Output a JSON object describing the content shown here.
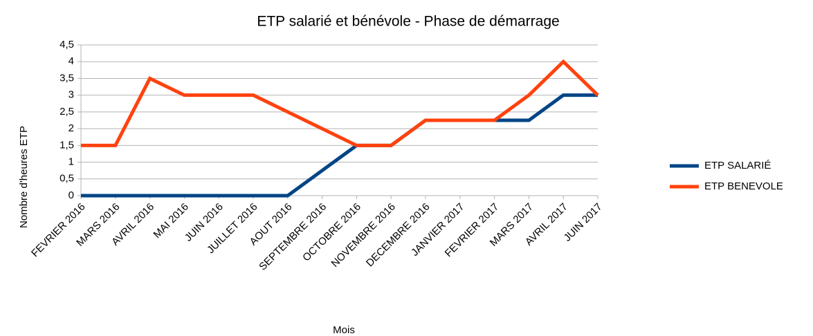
{
  "chart_data": {
    "type": "line",
    "title": "ETP salarié et bénévole - Phase de démarrage",
    "x_label": "Mois",
    "y_label": "Nombre d'heures ETP",
    "categories": [
      "FEVRIER 2016",
      "MARS 2016",
      "AVRIL 2016",
      "MAI 2016",
      "JUIN 2016",
      "JUILLET 2016",
      "AOUT 2016",
      "SEPTEMBRE 2016",
      "OCTOBRE 2016",
      "NOVEMBRE 2016",
      "DECEMBRE 2016",
      "JANVIER 2017",
      "FEVRIER 2017",
      "MARS 2017",
      "AVRIL 2017",
      "JUIN 2017"
    ],
    "series": [
      {
        "name": "ETP SALARIÉ",
        "color": "#004586",
        "values": [
          0,
          0,
          0,
          0,
          0,
          0,
          0,
          0.75,
          1.5,
          1.5,
          2.25,
          2.25,
          2.25,
          2.25,
          3,
          3
        ]
      },
      {
        "name": "ETP BENEVOLE",
        "color": "#ff420e",
        "values": [
          1.5,
          1.5,
          3.5,
          3,
          3,
          3,
          2.5,
          2,
          1.5,
          1.5,
          2.25,
          2.25,
          2.25,
          3,
          4,
          3
        ]
      }
    ],
    "ylim": [
      0,
      4.5
    ],
    "yticks": [
      0,
      {
        "value": 0.5,
        "label": "0,5"
      },
      1,
      {
        "value": 1.5,
        "label": "1,5"
      },
      2,
      {
        "value": 2.5,
        "label": "2,5"
      },
      3,
      {
        "value": 3.5,
        "label": "3,5"
      },
      4,
      {
        "value": 4.5,
        "label": "4,5"
      }
    ],
    "grid": true,
    "legend": "right"
  }
}
